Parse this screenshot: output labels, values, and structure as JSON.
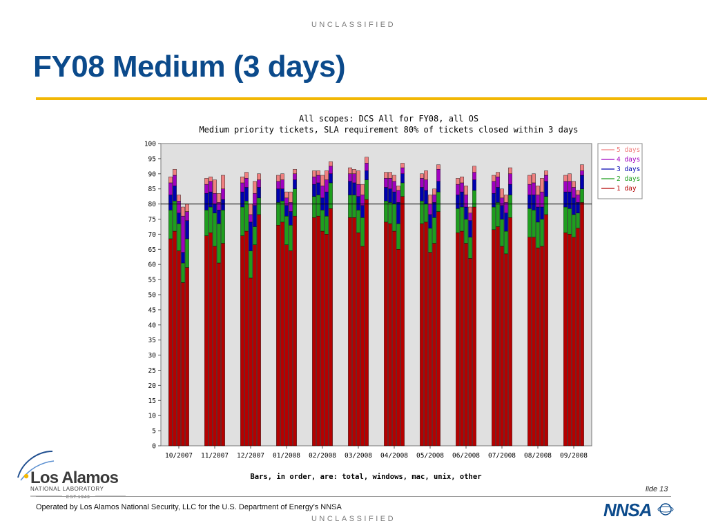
{
  "page": {
    "classification_top": "UNCLASSIFIED",
    "classification_bottom": "UNCLASSIFIED",
    "title": "FY08 Medium (3 days)",
    "slide_number": "lide 13",
    "footer_text": "Operated by Los Alamos National Security, LLC for the U.S. Department of Energy’s NNSA",
    "logo": {
      "name": "Los Alamos",
      "subtitle": "NATIONAL LABORATORY",
      "est": "EST.1943"
    },
    "nnsa_logo": "NNSA"
  },
  "colors": {
    "title": "#0b4a8b",
    "title_rule": "#f2b705",
    "plot_background": "#e0e0e0",
    "day1": "#b50000",
    "day2": "#1e9e1e",
    "day3": "#0000b0",
    "day4": "#a000c0",
    "day5": "#f08080"
  },
  "chart_data": {
    "type": "bar",
    "stacked": true,
    "title_line1": "All scopes: DCS All for FY08, all OS",
    "title_line2": "Medium priority tickets, SLA requirement 80% of tickets closed within 3 days",
    "note": "Bars, in order, are: total, windows, mac, unix, other",
    "ylim": [
      0,
      100
    ],
    "yticks": [
      0,
      5,
      10,
      15,
      20,
      25,
      30,
      35,
      40,
      45,
      50,
      55,
      60,
      65,
      70,
      75,
      80,
      85,
      90,
      95,
      100
    ],
    "reference_line": 80,
    "grid": false,
    "legend_position": "top-right",
    "legend": [
      "5 days",
      "4 days",
      "3 days",
      "2 days",
      "1 day"
    ],
    "categories": [
      "10/2007",
      "11/2007",
      "12/2007",
      "01/2008",
      "02/2008",
      "03/2008",
      "04/2008",
      "05/2008",
      "06/2008",
      "07/2008",
      "08/2008",
      "09/2008"
    ],
    "bar_groups": [
      [
        [
          68.5,
          78,
          83,
          87,
          89
        ],
        [
          71,
          81,
          86,
          89.5,
          91.5
        ],
        [
          64.5,
          73.5,
          77,
          81,
          83
        ],
        [
          54,
          60.5,
          64,
          76,
          79
        ],
        [
          59,
          68.5,
          74.5,
          77.5,
          80
        ]
      ],
      [
        [
          69.5,
          78,
          83.5,
          86.5,
          88.5
        ],
        [
          70.5,
          79,
          84,
          87.5,
          89
        ],
        [
          66,
          77,
          80,
          83.5,
          88
        ],
        [
          60.5,
          73.5,
          78,
          80.5,
          83.5
        ],
        [
          67,
          78,
          81.5,
          85,
          89.5
        ]
      ],
      [
        [
          69.5,
          79,
          84,
          87,
          89
        ],
        [
          71,
          81,
          85.5,
          88.5,
          90.5
        ],
        [
          55.5,
          64.5,
          74,
          76.5,
          80
        ],
        [
          66.5,
          72.5,
          79.5,
          83.5,
          87.5
        ],
        [
          76.5,
          82,
          85.5,
          88,
          90
        ]
      ],
      [
        [
          73,
          80.5,
          85,
          87.5,
          89.5
        ],
        [
          74,
          81,
          85,
          88,
          90
        ],
        [
          66.5,
          76,
          79.5,
          82,
          84
        ],
        [
          64.5,
          73,
          77.5,
          80.5,
          84
        ],
        [
          76,
          85,
          88,
          90,
          91.5
        ]
      ],
      [
        [
          75.5,
          82.5,
          86.5,
          89,
          91
        ],
        [
          76,
          83,
          87,
          89.5,
          91
        ],
        [
          71,
          78,
          82,
          86,
          89.5
        ],
        [
          70,
          76,
          84,
          88,
          91
        ],
        [
          78.5,
          87,
          90,
          92.5,
          94
        ]
      ],
      [
        [
          75.5,
          83,
          87.5,
          90,
          92
        ],
        [
          75.5,
          83,
          87,
          90,
          91.5
        ],
        [
          70.5,
          78,
          82.5,
          86.5,
          91
        ],
        [
          66,
          75.5,
          79.5,
          83,
          86.5
        ],
        [
          81.5,
          88,
          91,
          93.5,
          95.5
        ]
      ],
      [
        [
          74,
          81,
          85.5,
          88.5,
          90.5
        ],
        [
          73.5,
          80.5,
          85,
          88.5,
          90.5
        ],
        [
          71,
          80,
          84,
          87.5,
          89.5
        ],
        [
          65,
          73.5,
          80.5,
          84.5,
          86
        ],
        [
          82.5,
          87,
          90,
          92,
          93.5
        ]
      ],
      [
        [
          73.5,
          81,
          85.5,
          88.5,
          90
        ],
        [
          74,
          80,
          84.5,
          88,
          91
        ],
        [
          64,
          72,
          76.5,
          80,
          83
        ],
        [
          67,
          75.5,
          80.5,
          83,
          85
        ],
        [
          77.5,
          84,
          87.5,
          91.5,
          93
        ]
      ],
      [
        [
          70.5,
          78.5,
          83,
          86.5,
          88.5
        ],
        [
          71,
          79,
          84,
          87,
          89
        ],
        [
          67,
          75,
          79,
          83,
          86
        ],
        [
          62,
          69,
          74.5,
          77,
          79
        ],
        [
          79,
          84.5,
          88,
          90.5,
          92.5
        ]
      ],
      [
        [
          71.5,
          79,
          83.5,
          87.5,
          89.5
        ],
        [
          72.5,
          80.5,
          85.5,
          89,
          90.5
        ],
        [
          66,
          75,
          79.5,
          82,
          85
        ],
        [
          63.5,
          71,
          77,
          80.5,
          83
        ],
        [
          75.5,
          83,
          86.5,
          90,
          92
        ]
      ],
      [
        [
          69,
          78.5,
          83,
          86.5,
          89.5
        ],
        [
          69,
          78,
          83,
          87,
          90
        ],
        [
          65.5,
          74,
          79,
          83,
          86
        ],
        [
          66,
          75,
          79,
          84,
          88.5
        ],
        [
          76.5,
          82.5,
          87.5,
          89.5,
          91
        ]
      ],
      [
        [
          70.5,
          79,
          84,
          87.5,
          89.5
        ],
        [
          70,
          78.5,
          84,
          87.5,
          90
        ],
        [
          69,
          76.5,
          82,
          85.5,
          87.5
        ],
        [
          72,
          77,
          80.5,
          83,
          84.5
        ],
        [
          80.5,
          85,
          89.5,
          91,
          93
        ]
      ]
    ]
  }
}
